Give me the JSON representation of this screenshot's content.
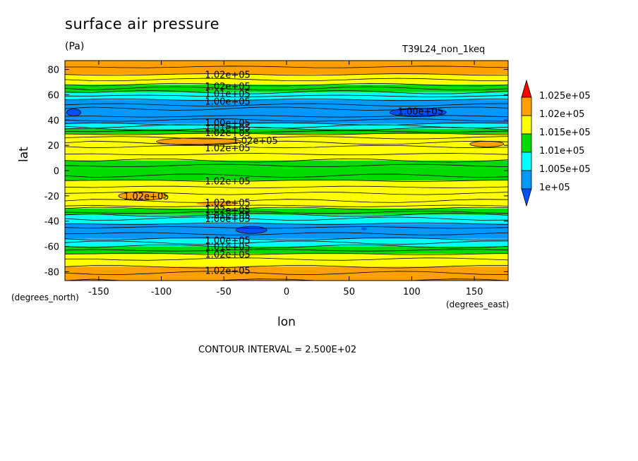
{
  "title": "surface air pressure",
  "units": "(Pa)",
  "dataset": "T39L24_non_1keq",
  "x_units": "(degrees_east)",
  "y_units": "(degrees_north)",
  "contour_interval": "CONTOUR INTERVAL = 2.500E+02",
  "chart_data": {
    "type": "heatmap",
    "subtype": "filled-contour",
    "xlabel": "lon",
    "ylabel": "lat",
    "xlim": [
      -177,
      177
    ],
    "ylim": [
      -87,
      87
    ],
    "x_ticks": [
      "-150",
      "-100",
      "-50",
      "0",
      "50",
      "100",
      "150"
    ],
    "x_tick_values": [
      -150,
      -100,
      -50,
      0,
      50,
      100,
      150
    ],
    "y_ticks": [
      "80",
      "60",
      "40",
      "20",
      "0",
      "-20",
      "-40",
      "-60",
      "-80"
    ],
    "y_tick_values": [
      80,
      60,
      40,
      20,
      0,
      -20,
      -40,
      -60,
      -80
    ],
    "colorbar": {
      "labels": [
        "1.025e+05",
        "1.02e+05",
        "1.015e+05",
        "1.01e+05",
        "1.005e+05",
        "1e+05"
      ],
      "colors": [
        "#ff0000",
        "#ffa000",
        "#ffff00",
        "#00dc00",
        "#00ffff",
        "#0098ff",
        "#0050ff"
      ]
    },
    "bands": [
      {
        "lat_top": 87,
        "lat_bottom": 76,
        "value": 102250,
        "color": "#ffa000"
      },
      {
        "lat_top": 76,
        "lat_bottom": 68,
        "value": 101750,
        "color": "#ffff00"
      },
      {
        "lat_top": 68,
        "lat_bottom": 62,
        "value": 101250,
        "color": "#00dc00"
      },
      {
        "lat_top": 62,
        "lat_bottom": 56,
        "value": 100750,
        "color": "#00ffff"
      },
      {
        "lat_top": 56,
        "lat_bottom": 37,
        "value": 100250,
        "color": "#0098ff"
      },
      {
        "lat_top": 37,
        "lat_bottom": 33,
        "value": 100750,
        "color": "#00ffff"
      },
      {
        "lat_top": 33,
        "lat_bottom": 29,
        "value": 101250,
        "color": "#00dc00"
      },
      {
        "lat_top": 29,
        "lat_bottom": 19,
        "value": 101750,
        "color": "#ffff00"
      },
      {
        "lat_top": 19,
        "lat_bottom": 8,
        "value": 101750,
        "color": "#ffff00"
      },
      {
        "lat_top": 8,
        "lat_bottom": -8,
        "value": 101250,
        "color": "#00dc00"
      },
      {
        "lat_top": -8,
        "lat_bottom": -30,
        "value": 101750,
        "color": "#ffff00"
      },
      {
        "lat_top": -30,
        "lat_bottom": -35,
        "value": 101250,
        "color": "#00dc00"
      },
      {
        "lat_top": -35,
        "lat_bottom": -42,
        "value": 100750,
        "color": "#00ffff"
      },
      {
        "lat_top": -42,
        "lat_bottom": -54,
        "value": 100250,
        "color": "#0098ff"
      },
      {
        "lat_top": -54,
        "lat_bottom": -60,
        "value": 100750,
        "color": "#00ffff"
      },
      {
        "lat_top": -60,
        "lat_bottom": -66,
        "value": 101250,
        "color": "#00dc00"
      },
      {
        "lat_top": -66,
        "lat_bottom": -76,
        "value": 101750,
        "color": "#ffff00"
      },
      {
        "lat_top": -76,
        "lat_bottom": -87,
        "value": 102250,
        "color": "#ffa000"
      }
    ],
    "contour_labels": [
      {
        "text": "1.02e+05",
        "lon": -47,
        "lat": 76
      },
      {
        "text": "1.02e+05",
        "lon": -47,
        "lat": 67
      },
      {
        "text": "1.01e+05",
        "lon": -47,
        "lat": 61
      },
      {
        "text": "1.00e+05",
        "lon": -47,
        "lat": 55
      },
      {
        "text": "1.00e+05",
        "lon": 107,
        "lat": 47
      },
      {
        "text": "1.00e+05",
        "lon": -47,
        "lat": 38
      },
      {
        "text": "1.01e+05",
        "lon": -47,
        "lat": 34
      },
      {
        "text": "1.02e+05",
        "lon": -47,
        "lat": 30
      },
      {
        "text": "1.02e+05",
        "lon": -25,
        "lat": 24
      },
      {
        "text": "1.02e+05",
        "lon": -47,
        "lat": 18
      },
      {
        "text": "1.02e+05",
        "lon": -47,
        "lat": -8
      },
      {
        "text": "1.02e+05",
        "lon": -112,
        "lat": -20
      },
      {
        "text": "1.02e+05",
        "lon": -47,
        "lat": -25
      },
      {
        "text": "1.02e+05",
        "lon": -47,
        "lat": -31
      },
      {
        "text": "1.01e+05",
        "lon": -47,
        "lat": -35
      },
      {
        "text": "1.00e+05",
        "lon": -47,
        "lat": -38
      },
      {
        "text": "1.00e+05",
        "lon": -47,
        "lat": -55
      },
      {
        "text": "1.01e+05",
        "lon": -47,
        "lat": -60
      },
      {
        "text": "1.02e+05",
        "lon": -47,
        "lat": -66
      },
      {
        "text": "1.02e+05",
        "lon": -47,
        "lat": -79
      }
    ]
  }
}
